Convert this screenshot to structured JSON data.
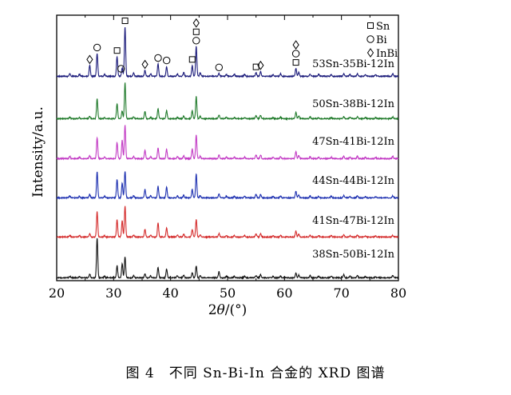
{
  "chart_data": {
    "type": "line",
    "title": "",
    "xlabel_prefix": "2",
    "xlabel_theta": "θ",
    "xlabel_suffix": "/(°)",
    "ylabel": "Intensity/a.u.",
    "xlim": [
      20,
      80
    ],
    "xticks": [
      "20",
      "30",
      "40",
      "50",
      "60",
      "70",
      "80"
    ],
    "grid": false,
    "legend": {
      "position": "top-right",
      "items": [
        {
          "symbol": "square",
          "label": "Sn"
        },
        {
          "symbol": "circle",
          "label": "Bi"
        },
        {
          "symbol": "diamond",
          "label": "InBi"
        }
      ]
    },
    "series": [
      {
        "name": "53Sn-35Bi-12In",
        "color": "#1a1a7a",
        "peaks": [
          [
            22.3,
            0.05
          ],
          [
            24.0,
            0.04
          ],
          [
            25.8,
            0.22
          ],
          [
            27.1,
            0.46
          ],
          [
            28.4,
            0.04
          ],
          [
            30.6,
            0.4
          ],
          [
            31.5,
            0.17
          ],
          [
            32.0,
            1.0
          ],
          [
            33.5,
            0.07
          ],
          [
            35.5,
            0.12
          ],
          [
            36.5,
            0.05
          ],
          [
            37.8,
            0.25
          ],
          [
            39.3,
            0.2
          ],
          [
            41.2,
            0.05
          ],
          [
            42.3,
            0.08
          ],
          [
            43.8,
            0.22
          ],
          [
            44.5,
            0.6
          ],
          [
            45.2,
            0.07
          ],
          [
            48.5,
            0.06
          ],
          [
            49.8,
            0.04
          ],
          [
            51.2,
            0.04
          ],
          [
            53.0,
            0.04
          ],
          [
            55.0,
            0.07
          ],
          [
            55.8,
            0.1
          ],
          [
            58.0,
            0.04
          ],
          [
            59.3,
            0.05
          ],
          [
            62.0,
            0.16
          ],
          [
            62.5,
            0.08
          ],
          [
            64.5,
            0.05
          ],
          [
            66.0,
            0.04
          ],
          [
            68.2,
            0.04
          ],
          [
            70.4,
            0.05
          ],
          [
            71.5,
            0.04
          ],
          [
            72.8,
            0.05
          ],
          [
            74.2,
            0.03
          ],
          [
            76.0,
            0.03
          ],
          [
            79.0,
            0.05
          ]
        ]
      },
      {
        "name": "50Sn-38Bi-12In",
        "color": "#1f7a2a",
        "peaks": [
          [
            22.3,
            0.04
          ],
          [
            24.0,
            0.03
          ],
          [
            25.8,
            0.07
          ],
          [
            27.1,
            0.55
          ],
          [
            28.4,
            0.03
          ],
          [
            30.6,
            0.42
          ],
          [
            31.5,
            0.22
          ],
          [
            32.0,
            1.0
          ],
          [
            33.5,
            0.05
          ],
          [
            35.5,
            0.2
          ],
          [
            36.5,
            0.04
          ],
          [
            37.8,
            0.28
          ],
          [
            39.3,
            0.22
          ],
          [
            41.2,
            0.04
          ],
          [
            42.3,
            0.07
          ],
          [
            43.8,
            0.22
          ],
          [
            44.5,
            0.62
          ],
          [
            45.2,
            0.06
          ],
          [
            48.5,
            0.1
          ],
          [
            49.8,
            0.04
          ],
          [
            51.2,
            0.03
          ],
          [
            53.0,
            0.03
          ],
          [
            55.0,
            0.09
          ],
          [
            55.8,
            0.1
          ],
          [
            58.0,
            0.03
          ],
          [
            59.3,
            0.04
          ],
          [
            62.0,
            0.18
          ],
          [
            62.5,
            0.08
          ],
          [
            64.5,
            0.05
          ],
          [
            66.0,
            0.03
          ],
          [
            68.2,
            0.03
          ],
          [
            70.4,
            0.05
          ],
          [
            71.5,
            0.04
          ],
          [
            72.8,
            0.05
          ],
          [
            74.2,
            0.03
          ],
          [
            76.0,
            0.03
          ],
          [
            79.0,
            0.05
          ]
        ]
      },
      {
        "name": "47Sn-41Bi-12In",
        "color": "#c23ac4",
        "peaks": [
          [
            22.3,
            0.06
          ],
          [
            24.0,
            0.04
          ],
          [
            25.8,
            0.08
          ],
          [
            27.1,
            0.55
          ],
          [
            28.4,
            0.04
          ],
          [
            30.6,
            0.42
          ],
          [
            31.5,
            0.48
          ],
          [
            32.0,
            0.88
          ],
          [
            33.5,
            0.06
          ],
          [
            35.5,
            0.22
          ],
          [
            36.5,
            0.05
          ],
          [
            37.8,
            0.28
          ],
          [
            39.3,
            0.24
          ],
          [
            41.2,
            0.05
          ],
          [
            42.3,
            0.08
          ],
          [
            43.8,
            0.26
          ],
          [
            44.5,
            0.62
          ],
          [
            45.2,
            0.07
          ],
          [
            48.5,
            0.1
          ],
          [
            49.8,
            0.04
          ],
          [
            51.2,
            0.04
          ],
          [
            53.0,
            0.04
          ],
          [
            55.0,
            0.1
          ],
          [
            55.8,
            0.1
          ],
          [
            58.0,
            0.04
          ],
          [
            59.3,
            0.05
          ],
          [
            62.0,
            0.18
          ],
          [
            62.5,
            0.08
          ],
          [
            64.5,
            0.05
          ],
          [
            66.0,
            0.04
          ],
          [
            68.2,
            0.04
          ],
          [
            70.4,
            0.06
          ],
          [
            71.5,
            0.04
          ],
          [
            72.8,
            0.06
          ],
          [
            74.2,
            0.03
          ],
          [
            76.0,
            0.03
          ],
          [
            79.0,
            0.06
          ]
        ]
      },
      {
        "name": "44Sn-44Bi-12In",
        "color": "#1c2fb0",
        "peaks": [
          [
            22.3,
            0.05
          ],
          [
            24.0,
            0.04
          ],
          [
            25.8,
            0.09
          ],
          [
            27.1,
            0.68
          ],
          [
            28.4,
            0.04
          ],
          [
            30.6,
            0.48
          ],
          [
            31.5,
            0.38
          ],
          [
            32.0,
            0.7
          ],
          [
            33.5,
            0.06
          ],
          [
            35.5,
            0.22
          ],
          [
            36.5,
            0.05
          ],
          [
            37.8,
            0.3
          ],
          [
            39.3,
            0.28
          ],
          [
            41.2,
            0.05
          ],
          [
            42.3,
            0.07
          ],
          [
            43.8,
            0.22
          ],
          [
            44.5,
            0.62
          ],
          [
            45.2,
            0.06
          ],
          [
            48.5,
            0.1
          ],
          [
            49.8,
            0.04
          ],
          [
            51.2,
            0.04
          ],
          [
            53.0,
            0.04
          ],
          [
            55.0,
            0.1
          ],
          [
            55.8,
            0.09
          ],
          [
            58.0,
            0.04
          ],
          [
            59.3,
            0.05
          ],
          [
            62.0,
            0.18
          ],
          [
            62.5,
            0.08
          ],
          [
            64.5,
            0.05
          ],
          [
            66.0,
            0.04
          ],
          [
            68.2,
            0.04
          ],
          [
            70.4,
            0.06
          ],
          [
            71.5,
            0.04
          ],
          [
            72.8,
            0.06
          ],
          [
            74.2,
            0.03
          ],
          [
            76.0,
            0.03
          ],
          [
            79.0,
            0.05
          ]
        ]
      },
      {
        "name": "41Sn-47Bi-12In",
        "color": "#d42a2a",
        "peaks": [
          [
            22.3,
            0.05
          ],
          [
            24.0,
            0.04
          ],
          [
            25.8,
            0.1
          ],
          [
            27.1,
            0.72
          ],
          [
            28.4,
            0.04
          ],
          [
            30.6,
            0.5
          ],
          [
            31.5,
            0.46
          ],
          [
            32.0,
            0.88
          ],
          [
            33.5,
            0.06
          ],
          [
            35.5,
            0.22
          ],
          [
            36.5,
            0.05
          ],
          [
            37.8,
            0.4
          ],
          [
            39.3,
            0.26
          ],
          [
            41.2,
            0.05
          ],
          [
            42.3,
            0.08
          ],
          [
            43.8,
            0.22
          ],
          [
            44.5,
            0.5
          ],
          [
            45.2,
            0.07
          ],
          [
            48.5,
            0.1
          ],
          [
            49.8,
            0.04
          ],
          [
            51.2,
            0.04
          ],
          [
            53.0,
            0.04
          ],
          [
            55.0,
            0.1
          ],
          [
            55.8,
            0.1
          ],
          [
            58.0,
            0.04
          ],
          [
            59.3,
            0.05
          ],
          [
            62.0,
            0.18
          ],
          [
            62.5,
            0.08
          ],
          [
            64.5,
            0.05
          ],
          [
            66.0,
            0.04
          ],
          [
            68.2,
            0.04
          ],
          [
            70.4,
            0.06
          ],
          [
            71.5,
            0.04
          ],
          [
            72.8,
            0.06
          ],
          [
            74.2,
            0.03
          ],
          [
            76.0,
            0.03
          ],
          [
            79.0,
            0.05
          ]
        ]
      },
      {
        "name": "38Sn-50Bi-12In",
        "color": "#111111",
        "peaks": [
          [
            22.3,
            0.04
          ],
          [
            24.0,
            0.03
          ],
          [
            25.8,
            0.1
          ],
          [
            27.1,
            1.0
          ],
          [
            28.4,
            0.04
          ],
          [
            30.6,
            0.3
          ],
          [
            31.5,
            0.36
          ],
          [
            32.0,
            0.52
          ],
          [
            33.5,
            0.05
          ],
          [
            35.5,
            0.1
          ],
          [
            36.5,
            0.05
          ],
          [
            37.8,
            0.26
          ],
          [
            39.3,
            0.22
          ],
          [
            41.2,
            0.05
          ],
          [
            42.3,
            0.06
          ],
          [
            43.8,
            0.12
          ],
          [
            44.5,
            0.3
          ],
          [
            45.2,
            0.06
          ],
          [
            48.5,
            0.16
          ],
          [
            49.8,
            0.04
          ],
          [
            51.2,
            0.04
          ],
          [
            53.0,
            0.04
          ],
          [
            55.0,
            0.06
          ],
          [
            55.8,
            0.08
          ],
          [
            58.0,
            0.04
          ],
          [
            59.3,
            0.04
          ],
          [
            62.0,
            0.12
          ],
          [
            62.5,
            0.07
          ],
          [
            64.5,
            0.06
          ],
          [
            66.0,
            0.04
          ],
          [
            68.2,
            0.04
          ],
          [
            70.4,
            0.08
          ],
          [
            71.5,
            0.05
          ],
          [
            72.8,
            0.06
          ],
          [
            74.2,
            0.03
          ],
          [
            76.0,
            0.03
          ],
          [
            79.0,
            0.06
          ]
        ]
      }
    ],
    "phase_markers": [
      {
        "x": 25.8,
        "symbol": "diamond"
      },
      {
        "x": 27.1,
        "symbol": "circle"
      },
      {
        "x": 30.6,
        "symbol": "square"
      },
      {
        "x": 31.3,
        "symbol": "circle"
      },
      {
        "x": 32.0,
        "symbol": "square"
      },
      {
        "x": 35.5,
        "symbol": "diamond"
      },
      {
        "x": 37.8,
        "symbol": "circle"
      },
      {
        "x": 39.3,
        "symbol": "circle"
      },
      {
        "x": 43.8,
        "symbol": "square"
      },
      {
        "x": 44.5,
        "symbol": "circle"
      },
      {
        "x": 44.5,
        "symbol": "square"
      },
      {
        "x": 44.5,
        "symbol": "diamond"
      },
      {
        "x": 48.5,
        "symbol": "circle"
      },
      {
        "x": 55.0,
        "symbol": "square"
      },
      {
        "x": 55.8,
        "symbol": "diamond"
      },
      {
        "x": 62.0,
        "symbol": "square"
      },
      {
        "x": 62.0,
        "symbol": "circle"
      },
      {
        "x": 62.0,
        "symbol": "diamond"
      }
    ]
  },
  "caption": "图 4　不同 Sn-Bi-In 合金的 XRD 图谱"
}
